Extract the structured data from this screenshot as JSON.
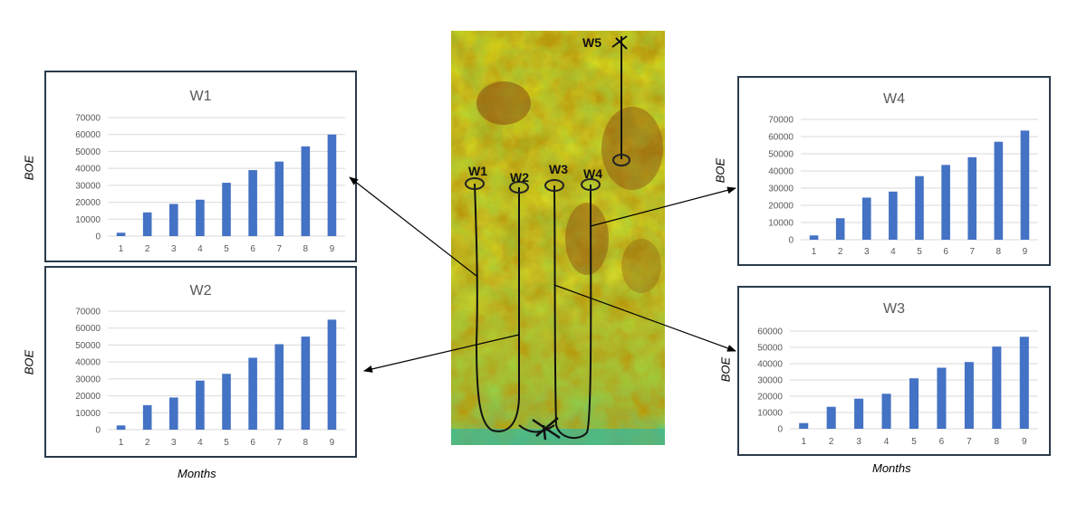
{
  "chart_data": [
    {
      "id": "w1",
      "type": "bar",
      "title": "W1",
      "xlabel": "",
      "ylabel": "BOE",
      "categories": [
        "1",
        "2",
        "3",
        "4",
        "5",
        "6",
        "7",
        "8",
        "9"
      ],
      "values": [
        2000,
        14000,
        19000,
        21500,
        31500,
        39000,
        44000,
        53000,
        60000
      ],
      "ylim": [
        0,
        70000
      ],
      "yticks": [
        "0",
        "10000",
        "20000",
        "30000",
        "40000",
        "50000",
        "60000",
        "70000"
      ],
      "grid": true
    },
    {
      "id": "w2",
      "type": "bar",
      "title": "W2",
      "xlabel": "Months",
      "ylabel": "BOE",
      "categories": [
        "1",
        "2",
        "3",
        "4",
        "5",
        "6",
        "7",
        "8",
        "9"
      ],
      "values": [
        2500,
        14500,
        19000,
        29000,
        33000,
        42500,
        50500,
        55000,
        65000
      ],
      "ylim": [
        0,
        70000
      ],
      "yticks": [
        "0",
        "10000",
        "20000",
        "30000",
        "40000",
        "50000",
        "60000",
        "70000"
      ],
      "grid": true
    },
    {
      "id": "w4",
      "type": "bar",
      "title": "W4",
      "xlabel": "",
      "ylabel": "BOE",
      "categories": [
        "1",
        "2",
        "3",
        "4",
        "5",
        "6",
        "7",
        "8",
        "9"
      ],
      "values": [
        2500,
        12500,
        24500,
        28000,
        37000,
        43500,
        48000,
        57000,
        63500
      ],
      "ylim": [
        0,
        70000
      ],
      "yticks": [
        "0",
        "10000",
        "20000",
        "30000",
        "40000",
        "50000",
        "60000",
        "70000"
      ],
      "grid": true
    },
    {
      "id": "w3",
      "type": "bar",
      "title": "W3",
      "xlabel": "Months",
      "ylabel": "BOE",
      "categories": [
        "1",
        "2",
        "3",
        "4",
        "5",
        "6",
        "7",
        "8",
        "9"
      ],
      "values": [
        3500,
        13500,
        18500,
        21500,
        31000,
        37500,
        41000,
        50500,
        56500
      ],
      "ylim": [
        0,
        60000
      ],
      "yticks": [
        "0",
        "10000",
        "20000",
        "30000",
        "40000",
        "50000",
        "60000"
      ],
      "grid": true
    }
  ],
  "map": {
    "well_labels": [
      "W1",
      "W2",
      "W3",
      "W4",
      "W5"
    ]
  },
  "colors": {
    "bar": "#4472c4",
    "grid": "#d9d9d9",
    "tick_text": "#595959",
    "title_text": "#595959",
    "panel_border": "#2b3a4a"
  }
}
